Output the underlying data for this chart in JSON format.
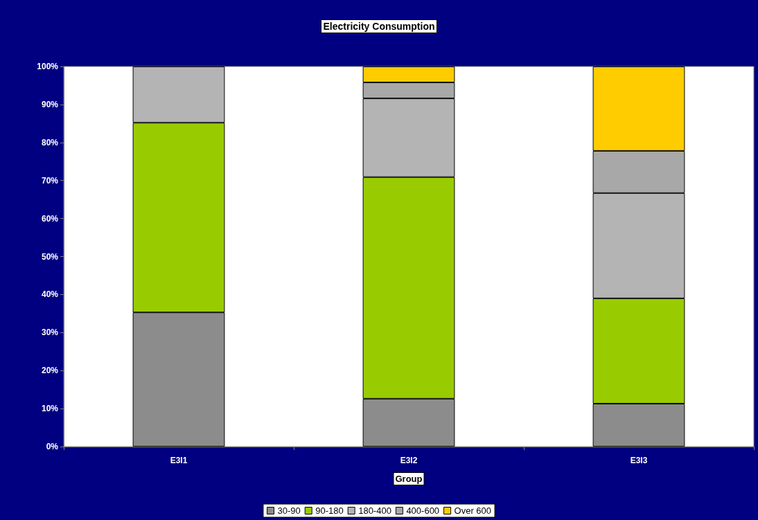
{
  "chart_data": {
    "type": "bar",
    "title": "Electricity Consumption",
    "xlabel": "Group",
    "stacked": true,
    "categories": [
      "E3I1",
      "E3I2",
      "E3I3"
    ],
    "series": [
      {
        "name": "30-90",
        "color": "#8c8c8c",
        "values": [
          35.3,
          12.6,
          11.3
        ]
      },
      {
        "name": "90-180",
        "color": "#99cc00",
        "values": [
          49.9,
          58.3,
          27.7
        ]
      },
      {
        "name": "180-400",
        "color": "#b4b4b4",
        "values": [
          14.8,
          20.7,
          27.7
        ]
      },
      {
        "name": "400-600",
        "color": "#a8a8a8",
        "values": [
          0,
          4.2,
          11.1
        ]
      },
      {
        "name": "Over 600",
        "color": "#ffcc00",
        "values": [
          0,
          4.2,
          22.2
        ]
      }
    ],
    "ylim": [
      0,
      100
    ],
    "yticks": [
      {
        "value": 0,
        "label": "0%"
      },
      {
        "value": 10,
        "label": "10%"
      },
      {
        "value": 20,
        "label": "20%"
      },
      {
        "value": 30,
        "label": "30%"
      },
      {
        "value": 40,
        "label": "40%"
      },
      {
        "value": 50,
        "label": "50%"
      },
      {
        "value": 60,
        "label": "60%"
      },
      {
        "value": 70,
        "label": "70%"
      },
      {
        "value": 80,
        "label": "80%"
      },
      {
        "value": 90,
        "label": "90%"
      },
      {
        "value": 100,
        "label": "100%"
      }
    ],
    "grid": false,
    "legend": "bottom"
  }
}
